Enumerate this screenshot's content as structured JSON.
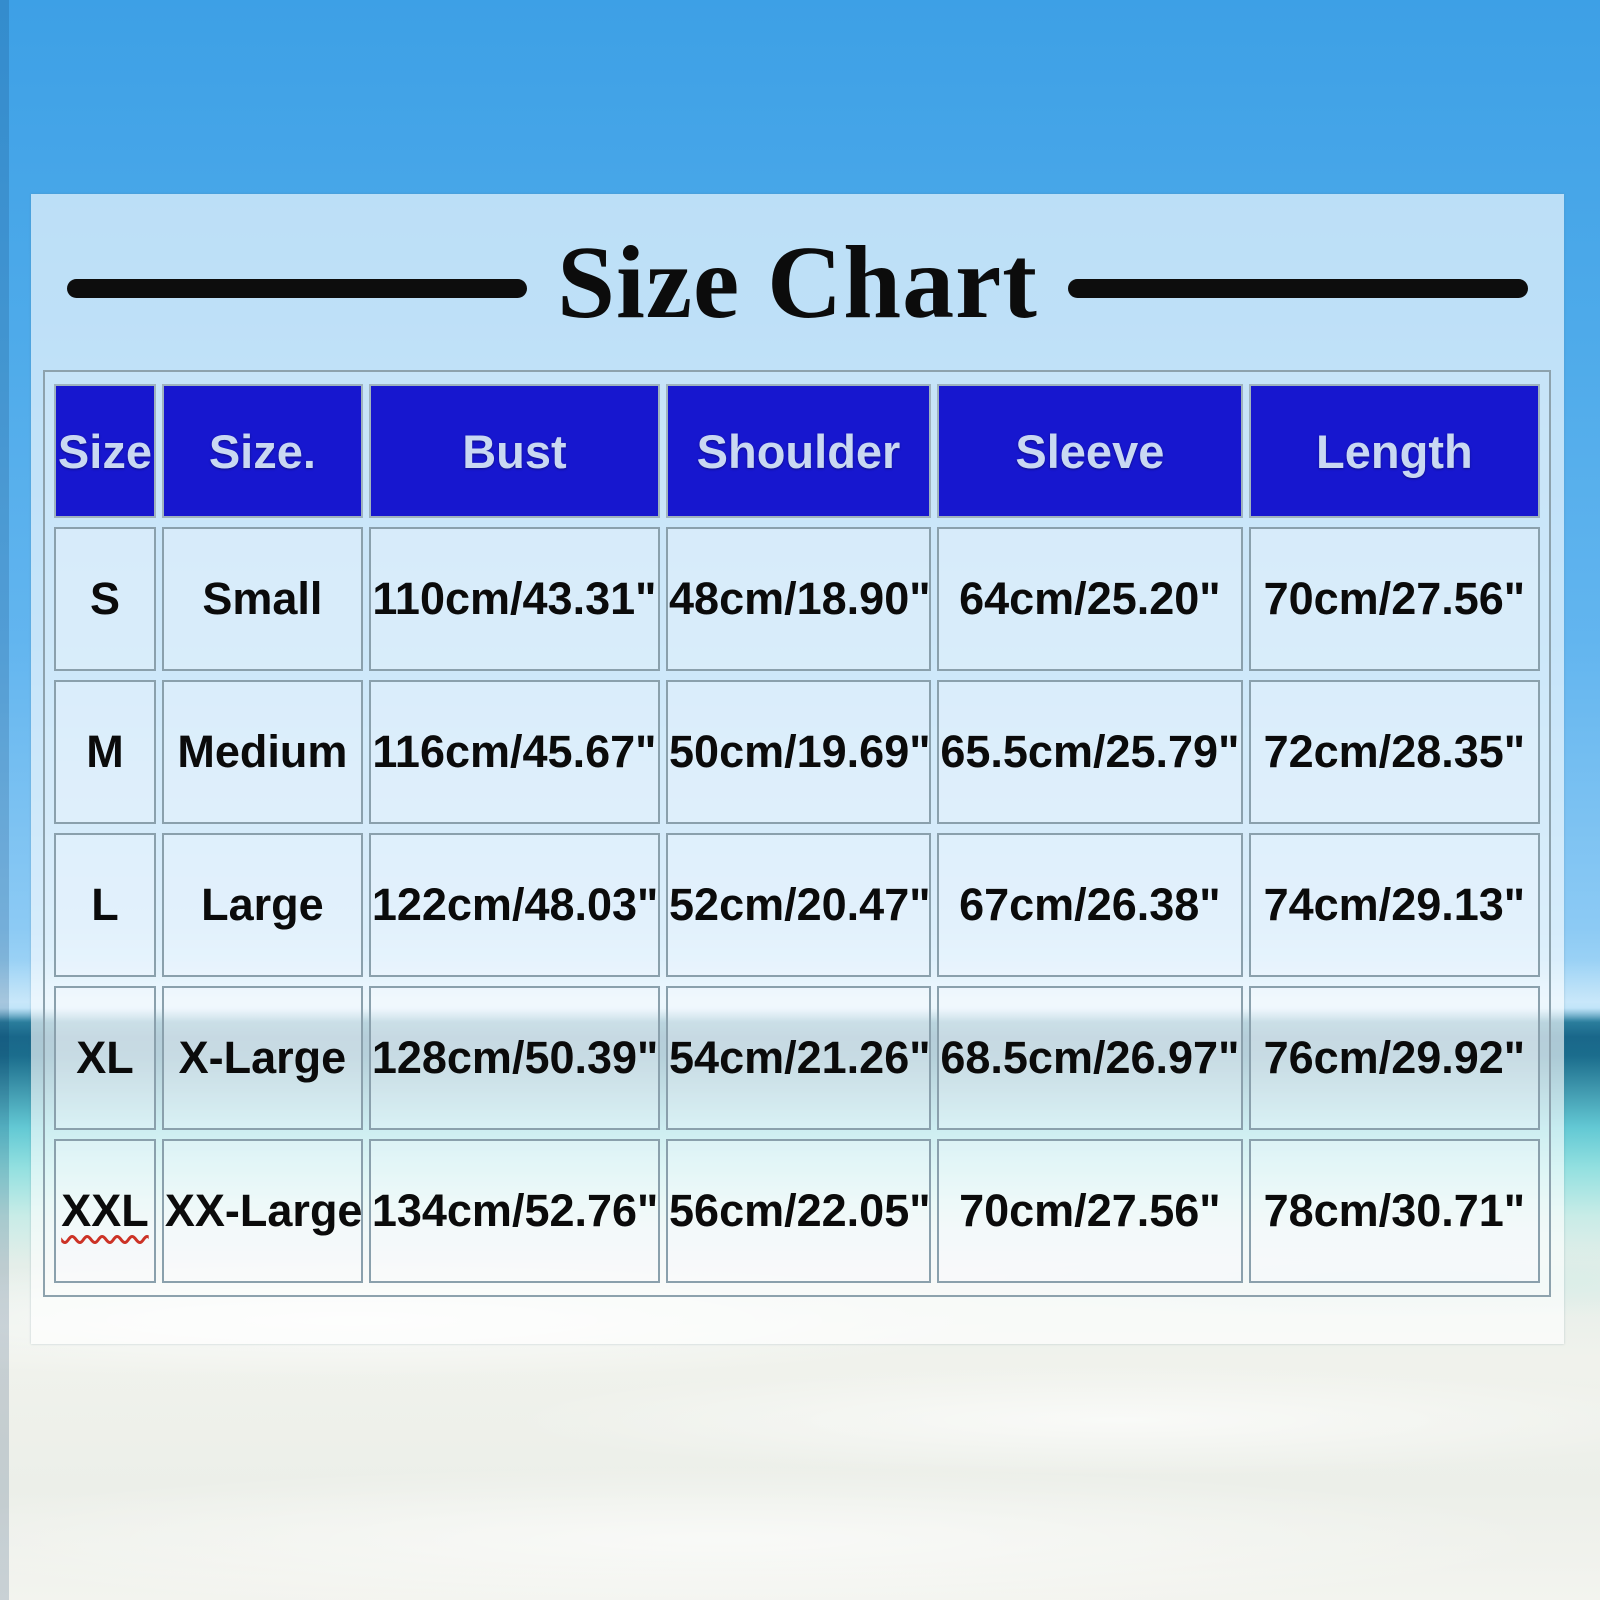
{
  "page_title": "Size Chart",
  "chart_data": {
    "type": "table",
    "title": "Size Chart",
    "columns": [
      "Size",
      "Size.",
      "Bust",
      "Shoulder",
      "Sleeve",
      "Length"
    ],
    "rows": [
      [
        "S",
        "Small",
        "110cm/43.31\"",
        "48cm/18.90\"",
        "64cm/25.20\"",
        "70cm/27.56\""
      ],
      [
        "M",
        "Medium",
        "116cm/45.67\"",
        "50cm/19.69\"",
        "65.5cm/25.79\"",
        "72cm/28.35\""
      ],
      [
        "L",
        "Large",
        "122cm/48.03\"",
        "52cm/20.47\"",
        "67cm/26.38\"",
        "74cm/29.13\""
      ],
      [
        "XL",
        "X-Large",
        "128cm/50.39\"",
        "54cm/21.26\"",
        "68.5cm/26.97\"",
        "76cm/29.92\""
      ],
      [
        "XXL",
        "XX-Large",
        "134cm/52.76\"",
        "56cm/22.05\"",
        "70cm/27.56\"",
        "78cm/30.71\""
      ]
    ],
    "legend_position": "none",
    "grid": true
  },
  "decorations": {
    "squiggle_cells": [
      [
        4,
        0
      ]
    ]
  },
  "colors": {
    "header_bg": "#1717cf",
    "header_text": "#c9d8f2",
    "cell_text": "#0b0b0b",
    "title_text": "#0c0c0c",
    "squiggle_underline": "#cc3326",
    "sky": "#62b5ef",
    "sea_horizon": "#19678a",
    "shallow_water": "#93e0e0",
    "sand": "#f0f2ec"
  }
}
